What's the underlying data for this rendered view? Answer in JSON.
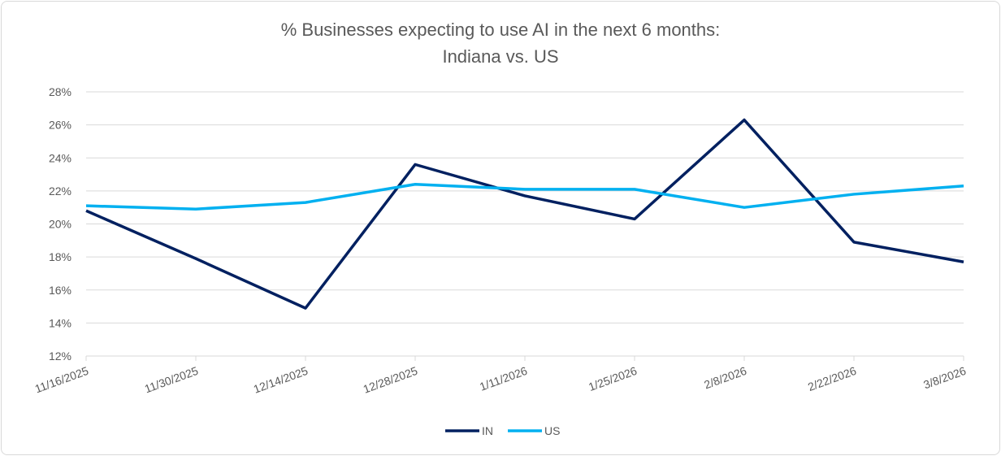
{
  "chart_data": {
    "type": "line",
    "title": "% Businesses  expecting to use AI in the next 6 months:",
    "subtitle": "Indiana vs. US",
    "categories": [
      "11/16/2025",
      "11/30/2025",
      "12/14/2025",
      "12/28/2025",
      "1/11/2026",
      "1/25/2026",
      "2/8/2026",
      "2/22/2026",
      "3/8/2026"
    ],
    "y_tick_labels": [
      "12%",
      "14%",
      "16%",
      "18%",
      "20%",
      "22%",
      "24%",
      "26%",
      "28%"
    ],
    "ylim": [
      12,
      28
    ],
    "y_unit": "%",
    "grid": true,
    "legend_position": "bottom",
    "series": [
      {
        "name": "IN",
        "color": "#002060",
        "values": [
          20.8,
          17.9,
          14.9,
          23.6,
          21.7,
          20.3,
          26.3,
          18.9,
          17.7
        ]
      },
      {
        "name": "US",
        "color": "#00b0f0",
        "values": [
          21.1,
          20.9,
          21.3,
          22.4,
          22.1,
          22.1,
          21.0,
          21.8,
          22.3
        ]
      }
    ]
  }
}
